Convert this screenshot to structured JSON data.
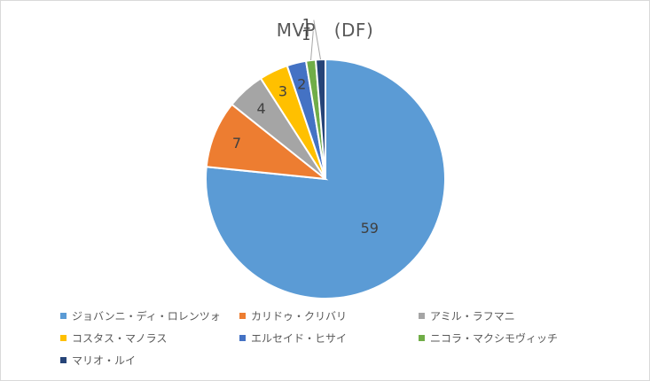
{
  "chart_data": {
    "type": "pie",
    "title": "MVP　(DF)",
    "start_angle_deg": 0,
    "direction": "clockwise",
    "legend_position": "bottom",
    "slices": [
      {
        "name": "ジョバンニ・ディ・ロレンツォ",
        "value": 59,
        "label": "59",
        "color": "#5b9bd5"
      },
      {
        "name": "カリドゥ・クリバリ",
        "value": 7,
        "label": "7",
        "color": "#ed7d31"
      },
      {
        "name": "アミル・ラフマニ",
        "value": 4,
        "label": "4",
        "color": "#a5a5a5"
      },
      {
        "name": "コスタス・マノラス",
        "value": 3,
        "label": "3",
        "color": "#ffc000"
      },
      {
        "name": "エルセイド・ヒサイ",
        "value": 2,
        "label": "2",
        "color": "#4472c4"
      },
      {
        "name": "ニコラ・マクシモヴィッチ",
        "value": 1,
        "label": "1",
        "color": "#70ad47"
      },
      {
        "name": "マリオ・ルイ",
        "value": 1,
        "label": "1",
        "color": "#264478"
      }
    ]
  }
}
